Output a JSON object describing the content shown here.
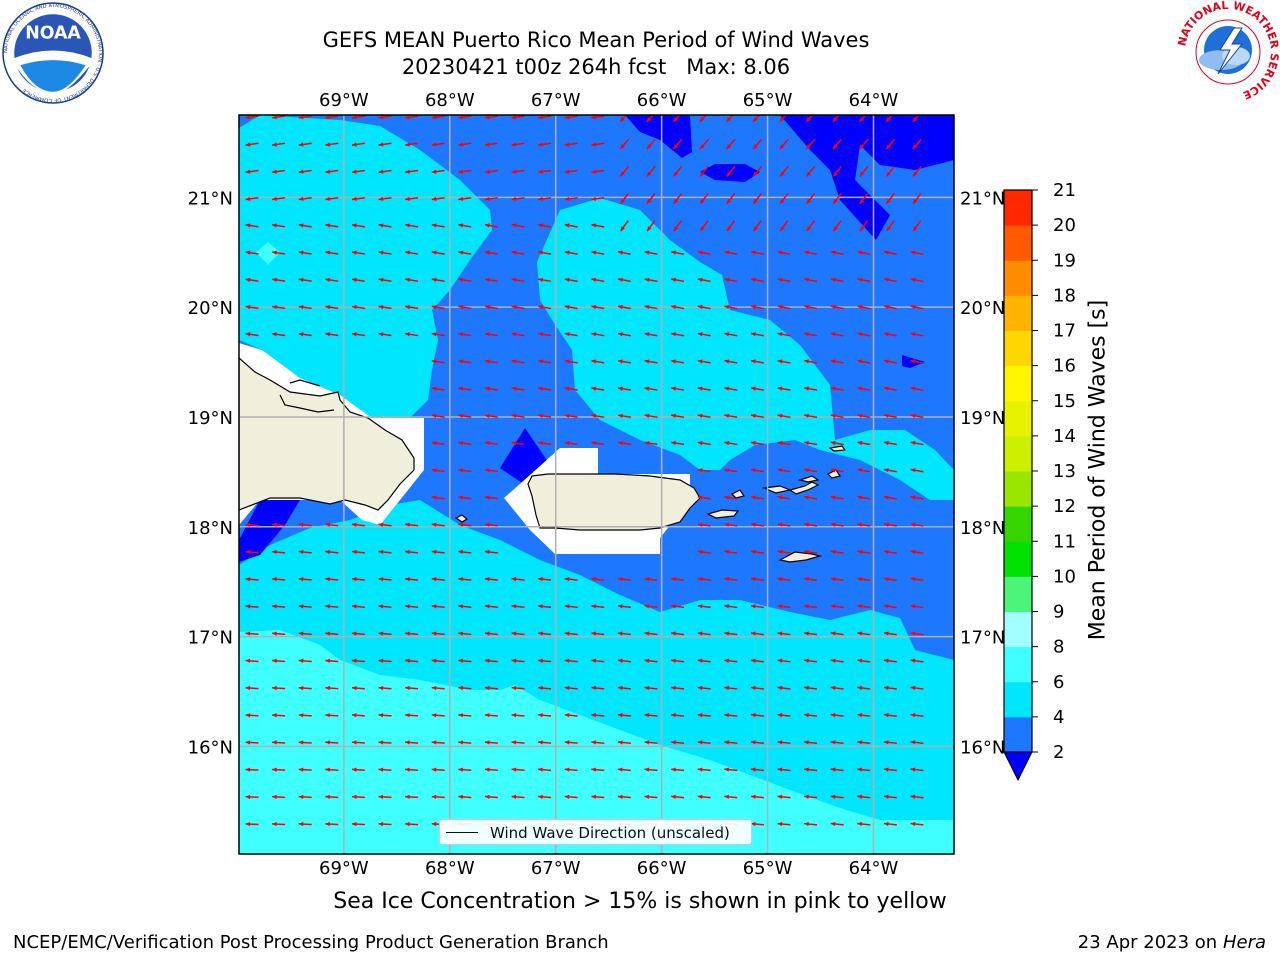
{
  "title": {
    "line1": "GEFS MEAN Puerto Rico Mean Period of Wind Waves",
    "line2": "20230421 t00z 264h fcst   Max: 8.06"
  },
  "logos": {
    "left": {
      "name": "noaa-logo",
      "text": "NOAA",
      "ring_text": "NATIONAL OCEANIC AND ATMOSPHERIC ADMINISTRATION · U.S. DEPARTMENT OF COMMERCE"
    },
    "right": {
      "name": "nws-logo",
      "ring_text": "NATIONAL WEATHER SERVICE"
    }
  },
  "map": {
    "lon_labels": [
      "69°W",
      "68°W",
      "67°W",
      "66°W",
      "65°W",
      "64°W"
    ],
    "lat_labels": [
      "21°N",
      "20°N",
      "19°N",
      "18°N",
      "17°N",
      "16°N"
    ],
    "lon_values": [
      -69,
      -68,
      -67,
      -66,
      -65,
      -64
    ],
    "lat_values": [
      21,
      20,
      19,
      18,
      17,
      16
    ],
    "extent": {
      "lon_min": -69.99,
      "lon_max": -63.24,
      "lat_min": 15.02,
      "lat_max": 21.75
    },
    "land_color": "#efefdc",
    "arrow_color": "#ff0000",
    "arrow_direction": "wind waves propagating toward the west / west-northwest"
  },
  "colorbar": {
    "label": "Mean Period of Wind Waves [s]",
    "ticks": [
      "2",
      "4",
      "6",
      "8",
      "9",
      "10",
      "11",
      "12",
      "13",
      "14",
      "15",
      "16",
      "17",
      "18",
      "19",
      "20",
      "21"
    ],
    "colors": [
      "#1e78ff",
      "#00e6ff",
      "#3fffff",
      "#a2ffff",
      "#4cf57a",
      "#00e100",
      "#34d500",
      "#9ae600",
      "#cdf000",
      "#e6f200",
      "#fff600",
      "#ffd700",
      "#ffb400",
      "#ff8c00",
      "#ff5a00",
      "#ff2800"
    ],
    "under_color": "#0000ff"
  },
  "legend": {
    "label": "Wind Wave Direction (unscaled)"
  },
  "notes": {
    "sea_ice": "Sea Ice Concentration > 15% is shown in pink to yellow",
    "footer_left": "NCEP/EMC/Verification Post Processing Product Generation Branch",
    "footer_date": "23 Apr 2023 on ",
    "footer_machine": "Hera"
  }
}
